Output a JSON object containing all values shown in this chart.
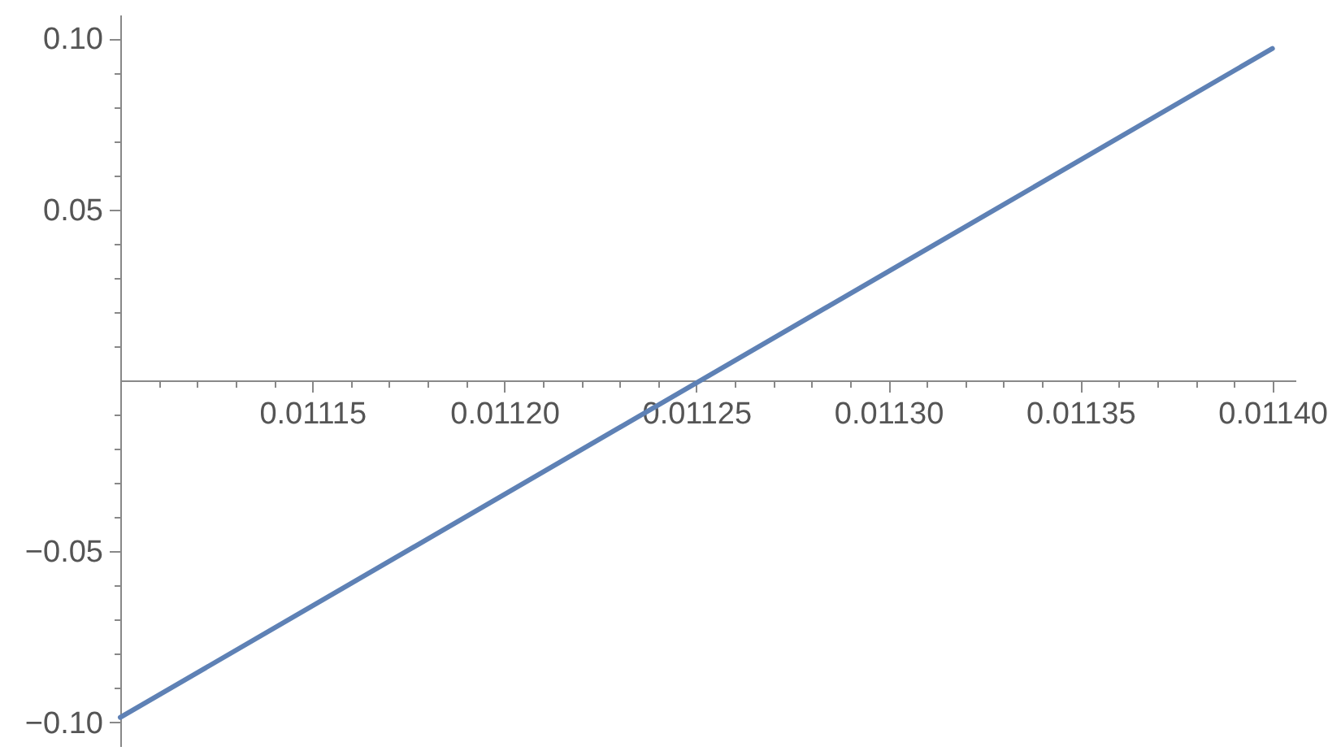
{
  "chart_data": {
    "type": "line",
    "x": [
      0.0111,
      0.0114
    ],
    "series": [
      {
        "color": "#5e81b5",
        "values": [
          -0.0986,
          0.0971
        ]
      }
    ],
    "xlim": [
      0.0111,
      0.011406
    ],
    "ylim": [
      -0.107,
      0.107
    ],
    "xticks": [
      {
        "value": 0.01111,
        "label": null
      },
      {
        "value": 0.01112,
        "label": null
      },
      {
        "value": 0.01113,
        "label": null
      },
      {
        "value": 0.01114,
        "label": null
      },
      {
        "value": 0.01115,
        "label": "0.01115"
      },
      {
        "value": 0.01116,
        "label": null
      },
      {
        "value": 0.01117,
        "label": null
      },
      {
        "value": 0.01118,
        "label": null
      },
      {
        "value": 0.01119,
        "label": null
      },
      {
        "value": 0.0112,
        "label": "0.01120"
      },
      {
        "value": 0.01121,
        "label": null
      },
      {
        "value": 0.01122,
        "label": null
      },
      {
        "value": 0.01123,
        "label": null
      },
      {
        "value": 0.01124,
        "label": null
      },
      {
        "value": 0.01125,
        "label": "0.01125"
      },
      {
        "value": 0.01126,
        "label": null
      },
      {
        "value": 0.01127,
        "label": null
      },
      {
        "value": 0.01128,
        "label": null
      },
      {
        "value": 0.01129,
        "label": null
      },
      {
        "value": 0.0113,
        "label": "0.01130"
      },
      {
        "value": 0.01131,
        "label": null
      },
      {
        "value": 0.01132,
        "label": null
      },
      {
        "value": 0.01133,
        "label": null
      },
      {
        "value": 0.01134,
        "label": null
      },
      {
        "value": 0.01135,
        "label": "0.01135"
      },
      {
        "value": 0.01136,
        "label": null
      },
      {
        "value": 0.01137,
        "label": null
      },
      {
        "value": 0.01138,
        "label": null
      },
      {
        "value": 0.01139,
        "label": null
      },
      {
        "value": 0.0114,
        "label": "0.01140"
      }
    ],
    "yticks": [
      {
        "value": -0.1,
        "label": "−0.10"
      },
      {
        "value": -0.09,
        "label": null
      },
      {
        "value": -0.08,
        "label": null
      },
      {
        "value": -0.07,
        "label": null
      },
      {
        "value": -0.06,
        "label": null
      },
      {
        "value": -0.05,
        "label": "−0.05"
      },
      {
        "value": -0.04,
        "label": null
      },
      {
        "value": -0.03,
        "label": null
      },
      {
        "value": -0.02,
        "label": null
      },
      {
        "value": -0.01,
        "label": null
      },
      {
        "value": 0.01,
        "label": null
      },
      {
        "value": 0.02,
        "label": null
      },
      {
        "value": 0.03,
        "label": null
      },
      {
        "value": 0.04,
        "label": null
      },
      {
        "value": 0.05,
        "label": "0.05"
      },
      {
        "value": 0.06,
        "label": null
      },
      {
        "value": 0.07,
        "label": null
      },
      {
        "value": 0.08,
        "label": null
      },
      {
        "value": 0.09,
        "label": null
      },
      {
        "value": 0.1,
        "label": "0.10"
      }
    ],
    "grid": false,
    "marker": "none",
    "line_style": "solid"
  }
}
